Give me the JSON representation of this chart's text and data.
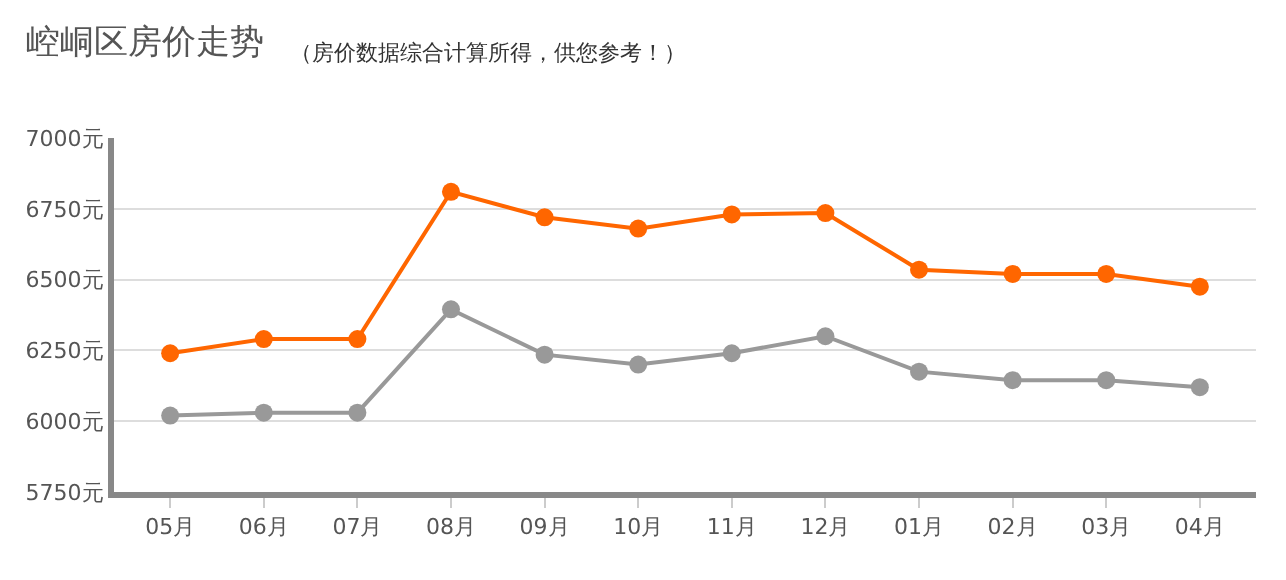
{
  "chart_data": {
    "type": "line",
    "title": "崆峒区房价走势",
    "subtitle": "（房价数据综合计算所得，供您参考！）",
    "categories": [
      "05月",
      "06月",
      "07月",
      "08月",
      "09月",
      "10月",
      "11月",
      "12月",
      "01月",
      "02月",
      "03月",
      "04月"
    ],
    "series": [
      {
        "color": "#ff6600",
        "values": [
          6240,
          6290,
          6290,
          6810,
          6720,
          6680,
          6730,
          6735,
          6535,
          6520,
          6520,
          6475
        ]
      },
      {
        "color": "#999999",
        "values": [
          6020,
          6030,
          6030,
          6395,
          6235,
          6200,
          6240,
          6300,
          6175,
          6145,
          6145,
          6120
        ]
      }
    ],
    "ylim": [
      5750,
      7000
    ],
    "yticks": [
      {
        "value": 5750,
        "label": "5750元"
      },
      {
        "value": 6000,
        "label": "6000元"
      },
      {
        "value": 6250,
        "label": "6250元"
      },
      {
        "value": 6500,
        "label": "6500元"
      },
      {
        "value": 6750,
        "label": "6750元"
      },
      {
        "value": 7000,
        "label": "7000元"
      }
    ],
    "grid": "y",
    "marker": "circle",
    "line_style": "solid"
  }
}
